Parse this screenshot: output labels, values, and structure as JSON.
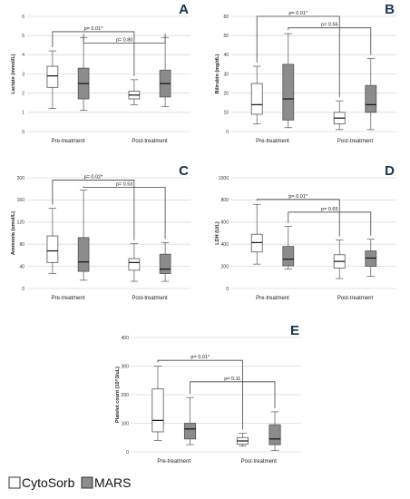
{
  "colors": {
    "cytosorb": "#ffffff",
    "mars": "#8c8c8c",
    "box_stroke": "#555555",
    "panel_letter": "#14324f"
  },
  "legend": {
    "items": [
      "CytoSorb",
      "MARS"
    ]
  },
  "chart_data": [
    {
      "type": "box",
      "panel": "A",
      "ylabel": "Lactate (mmol/L)",
      "ylim": [
        0,
        6
      ],
      "yticks": [
        0,
        1,
        2,
        3,
        4,
        5,
        6
      ],
      "grid": true,
      "categories": [
        "Pre-treatment",
        "Post-treatment"
      ],
      "series": [
        {
          "name": "CytoSorb",
          "boxes": [
            {
              "min": 1.2,
              "q1": 2.3,
              "median": 2.9,
              "q3": 3.4,
              "max": 4.2
            },
            {
              "min": 1.4,
              "q1": 1.7,
              "median": 1.9,
              "q3": 2.1,
              "max": 2.7
            }
          ]
        },
        {
          "name": "MARS",
          "boxes": [
            {
              "min": 1.1,
              "q1": 1.7,
              "median": 2.5,
              "q3": 3.3,
              "max": 4.9
            },
            {
              "min": 1.3,
              "q1": 1.8,
              "median": 2.5,
              "q3": 3.2,
              "max": 4.9
            }
          ]
        }
      ],
      "annotations": [
        {
          "text": "p= 0.01*",
          "from": [
            0,
            0
          ],
          "to": [
            1,
            0
          ],
          "at": 5.2
        },
        {
          "text": "p= 0.80",
          "from": [
            0,
            1
          ],
          "to": [
            1,
            1
          ],
          "at": 4.6
        }
      ]
    },
    {
      "type": "box",
      "panel": "B",
      "ylabel": "Bilirubin (mg/dL)",
      "ylim": [
        0,
        60
      ],
      "yticks": [
        0,
        10,
        20,
        30,
        40,
        50,
        60
      ],
      "grid": true,
      "categories": [
        "Pre-treatment",
        "Post-treatment"
      ],
      "series": [
        {
          "name": "CytoSorb",
          "boxes": [
            {
              "min": 4,
              "q1": 9,
              "median": 14,
              "q3": 25,
              "max": 34
            },
            {
              "min": 1,
              "q1": 4,
              "median": 7,
              "q3": 10,
              "max": 16
            }
          ]
        },
        {
          "name": "MARS",
          "boxes": [
            {
              "min": 2,
              "q1": 6,
              "median": 17,
              "q3": 35,
              "max": 51
            },
            {
              "min": 1,
              "q1": 10,
              "median": 14,
              "q3": 24,
              "max": 38
            }
          ]
        }
      ],
      "annotations": [
        {
          "text": "p= 0.01*",
          "from": [
            0,
            0
          ],
          "to": [
            1,
            0
          ],
          "at": 60
        },
        {
          "text": "p= 0.56",
          "from": [
            0,
            1
          ],
          "to": [
            1,
            1
          ],
          "at": 54
        }
      ]
    },
    {
      "type": "box",
      "panel": "C",
      "ylabel": "Ammonia (umol/L)",
      "ylim": [
        0,
        200
      ],
      "yticks": [
        0,
        40,
        80,
        120,
        160,
        200
      ],
      "grid": true,
      "categories": [
        "Pre-treatment",
        "Post-treatment"
      ],
      "series": [
        {
          "name": "CytoSorb",
          "boxes": [
            {
              "min": 27,
              "q1": 47,
              "median": 68,
              "q3": 95,
              "max": 145
            },
            {
              "min": 13,
              "q1": 33,
              "median": 47,
              "q3": 54,
              "max": 81
            }
          ]
        },
        {
          "name": "MARS",
          "boxes": [
            {
              "min": 15,
              "q1": 31,
              "median": 48,
              "q3": 92,
              "max": 178
            },
            {
              "min": 13,
              "q1": 27,
              "median": 35,
              "q3": 62,
              "max": 83
            }
          ]
        }
      ],
      "annotations": [
        {
          "text": "p= 0.02*",
          "from": [
            0,
            0
          ],
          "to": [
            1,
            0
          ],
          "at": 196
        },
        {
          "text": "p= 0.53",
          "from": [
            0,
            1
          ],
          "to": [
            1,
            1
          ],
          "at": 183
        }
      ]
    },
    {
      "type": "box",
      "panel": "D",
      "ylabel": "LDH (U/L)",
      "ylim": [
        0,
        1000
      ],
      "yticks": [
        0,
        200,
        400,
        600,
        800,
        1000
      ],
      "grid": true,
      "categories": [
        "Pre-treatment",
        "Post-treatment"
      ],
      "series": [
        {
          "name": "CytoSorb",
          "boxes": [
            {
              "min": 220,
              "q1": 330,
              "median": 415,
              "q3": 490,
              "max": 760
            },
            {
              "min": 90,
              "q1": 185,
              "median": 245,
              "q3": 305,
              "max": 440
            }
          ]
        },
        {
          "name": "MARS",
          "boxes": [
            {
              "min": 175,
              "q1": 205,
              "median": 265,
              "q3": 380,
              "max": 560
            },
            {
              "min": 110,
              "q1": 200,
              "median": 275,
              "q3": 340,
              "max": 445
            }
          ]
        }
      ],
      "annotations": [
        {
          "text": "p= 0.01*",
          "from": [
            0,
            0
          ],
          "to": [
            1,
            0
          ],
          "at": 805
        },
        {
          "text": "p= 0.65",
          "from": [
            0,
            1
          ],
          "to": [
            1,
            1
          ],
          "at": 690
        }
      ]
    },
    {
      "type": "box",
      "panel": "E",
      "ylabel": "Platelet count (10^3/uL)",
      "ylim": [
        0,
        400
      ],
      "yticks": [
        0,
        100,
        200,
        300,
        400
      ],
      "grid": true,
      "categories": [
        "Pre-treatment",
        "Post-treatment"
      ],
      "series": [
        {
          "name": "CytoSorb",
          "boxes": [
            {
              "min": 40,
              "q1": 70,
              "median": 110,
              "q3": 220,
              "max": 300
            },
            {
              "min": 20,
              "q1": 27,
              "median": 38,
              "q3": 50,
              "max": 65
            }
          ]
        },
        {
          "name": "MARS",
          "boxes": [
            {
              "min": 25,
              "q1": 45,
              "median": 80,
              "q3": 100,
              "max": 190
            },
            {
              "min": 5,
              "q1": 25,
              "median": 45,
              "q3": 95,
              "max": 140
            }
          ]
        }
      ],
      "annotations": [
        {
          "text": "p= 0.01*",
          "from": [
            0,
            0
          ],
          "to": [
            1,
            0
          ],
          "at": 320
        },
        {
          "text": "p= 0.11",
          "from": [
            0,
            1
          ],
          "to": [
            1,
            1
          ],
          "at": 245
        }
      ]
    }
  ]
}
